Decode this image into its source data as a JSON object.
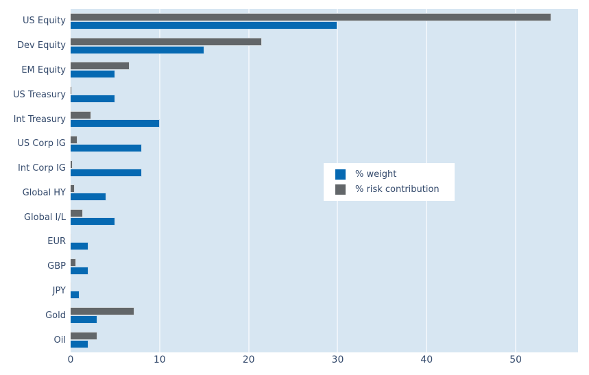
{
  "chart": {
    "colors": {
      "background": "#ffffff",
      "plot_background": "#d7e6f2",
      "grid": "#eef4fa",
      "text": "#33496b",
      "weight_blue": "#0669b2",
      "risk_gray": "#626669"
    }
  },
  "legend": {
    "items": [
      {
        "label": "% weight",
        "color": "#0669b2"
      },
      {
        "label": "% risk contribution",
        "color": "#626669"
      }
    ]
  },
  "chart_data": {
    "type": "bar",
    "orientation": "horizontal",
    "title": "",
    "xlabel": "",
    "ylabel": "",
    "grid": true,
    "legend_position": "center-right",
    "xlim": [
      0,
      57
    ],
    "xticks": [
      0,
      10,
      20,
      30,
      40,
      50
    ],
    "categories": [
      "US Equity",
      "Dev Equity",
      "EM Equity",
      "US Treasury",
      "Int Treasury",
      "US Corp IG",
      "Int Corp IG",
      "Global HY",
      "Global I/L",
      "EUR",
      "GBP",
      "JPY",
      "Gold",
      "Oil"
    ],
    "series": [
      {
        "name": "% weight",
        "color": "#0669b2",
        "values": [
          30,
          15,
          5,
          5,
          10,
          8,
          8,
          4,
          5,
          2,
          2,
          1,
          3,
          2
        ]
      },
      {
        "name": "% risk contribution",
        "color": "#626669",
        "values": [
          54,
          21.5,
          6.6,
          0.15,
          2.3,
          0.8,
          0.25,
          0.5,
          1.4,
          0.1,
          0.6,
          0.05,
          7.2,
          3
        ]
      }
    ]
  }
}
